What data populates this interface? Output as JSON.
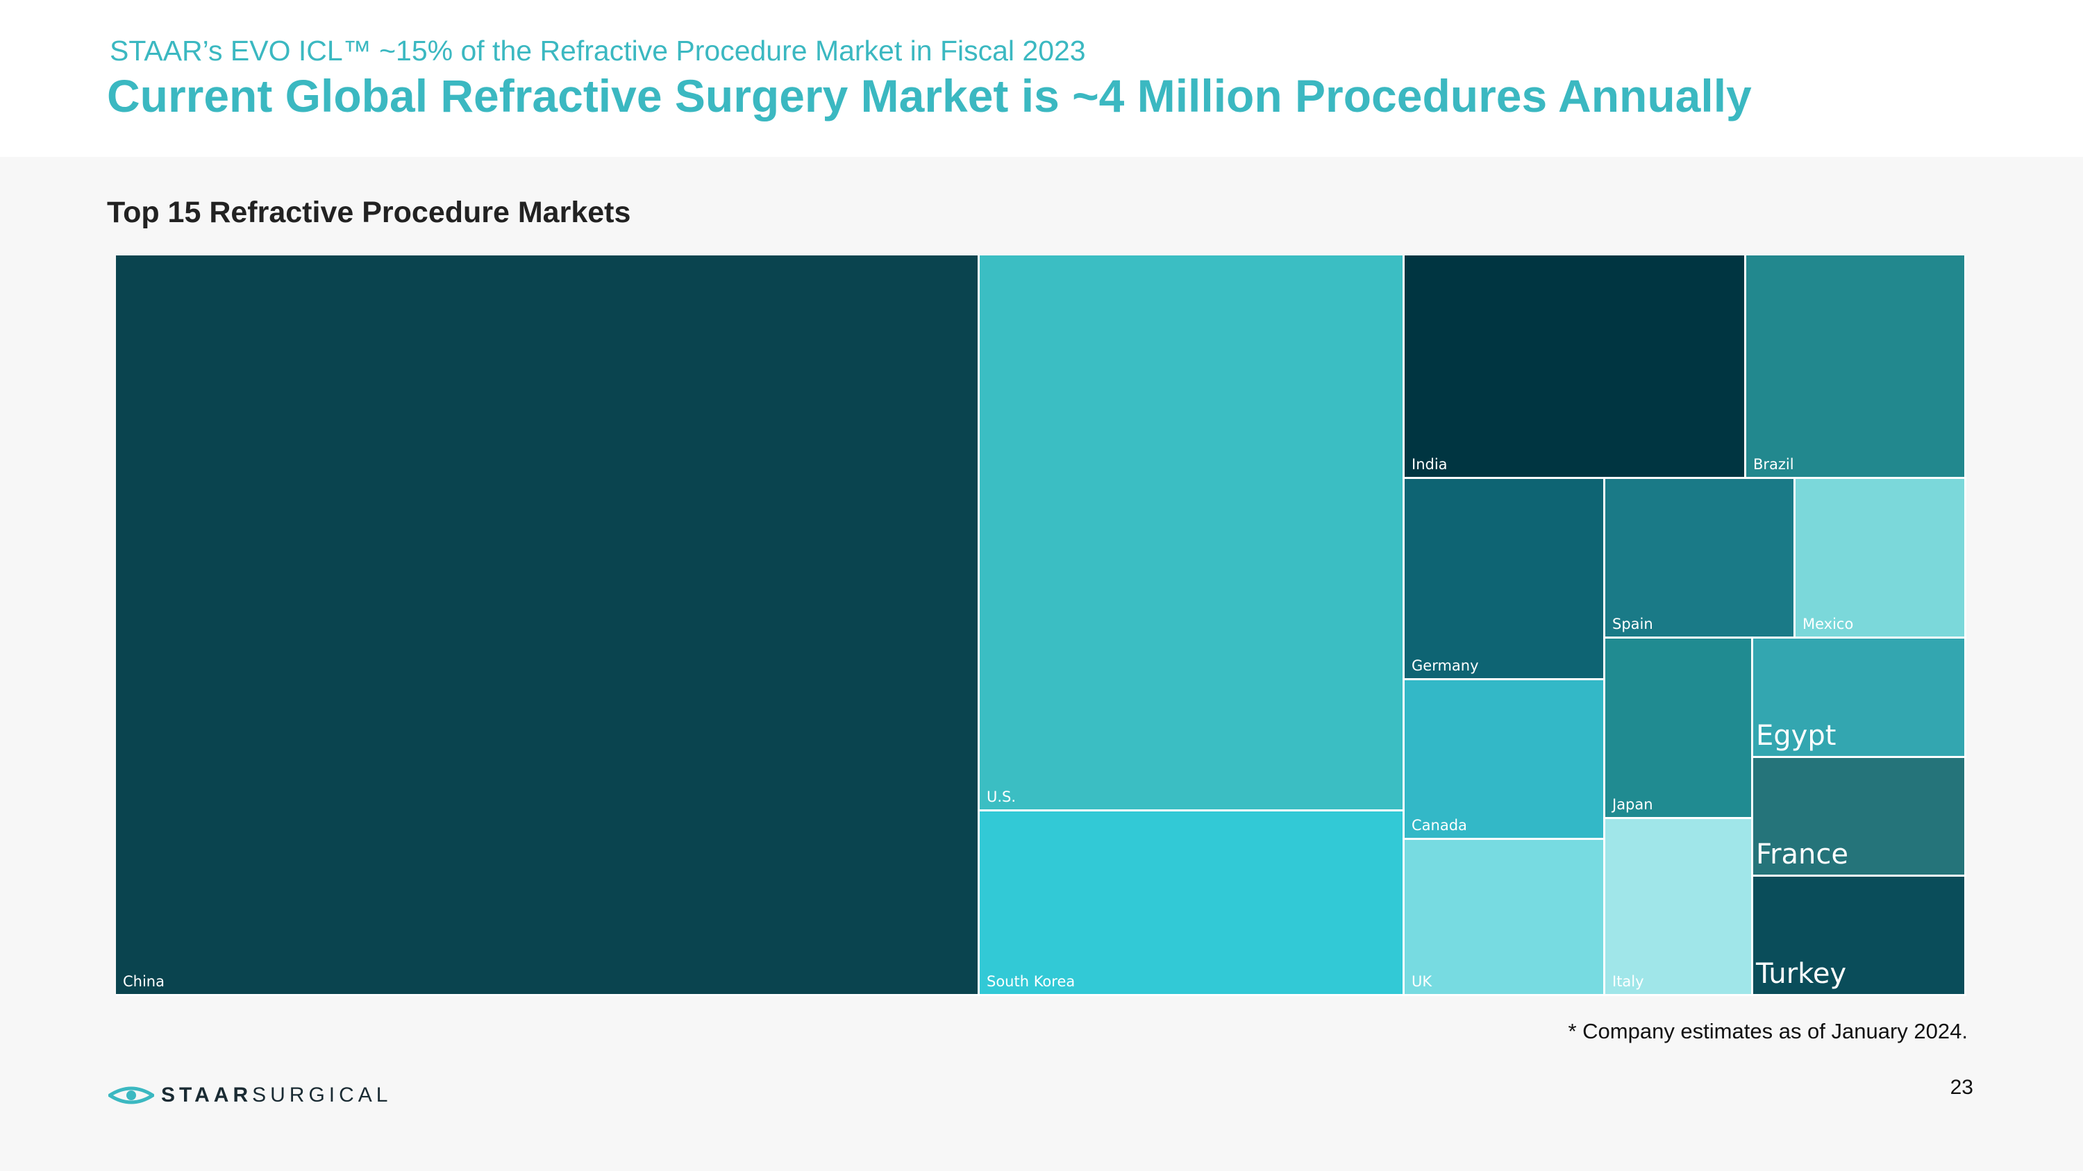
{
  "header": {
    "subtitle": "STAAR’s EVO ICL™ ~15% of the Refractive Procedure Market in Fiscal 2023",
    "title": "Current Global Refractive Surgery Market is ~4 Million Procedures Annually"
  },
  "chart_data": {
    "type": "treemap",
    "title": "Top 15 Refractive Procedure Markets",
    "legend": "none",
    "items": [
      {
        "name": "China",
        "color": "#0a444f",
        "label_size": "small"
      },
      {
        "name": "U.S.",
        "color": "#3bbec3",
        "label_size": "small"
      },
      {
        "name": "South Korea",
        "color": "#32c9d6",
        "label_size": "small"
      },
      {
        "name": "India",
        "color": "#003541",
        "label_size": "small"
      },
      {
        "name": "Brazil",
        "color": "#22888e",
        "label_size": "small"
      },
      {
        "name": "Germany",
        "color": "#0e6473",
        "label_size": "small"
      },
      {
        "name": "Spain",
        "color": "#1a7a87",
        "label_size": "small"
      },
      {
        "name": "Mexico",
        "color": "#7bd8da",
        "label_size": "small"
      },
      {
        "name": "Canada",
        "color": "#33b8c7",
        "label_size": "small"
      },
      {
        "name": "UK",
        "color": "#77dbe1",
        "label_size": "small"
      },
      {
        "name": "Japan",
        "color": "#208b91",
        "label_size": "small"
      },
      {
        "name": "Italy",
        "color": "#a0e6e9",
        "label_size": "small"
      },
      {
        "name": "Egypt",
        "color": "#33a6b0",
        "label_size": "large"
      },
      {
        "name": "France",
        "color": "#25747a",
        "label_size": "large"
      },
      {
        "name": "Turkey",
        "color": "#0a4d5a",
        "label_size": "large"
      }
    ]
  },
  "footer": {
    "footnote": "* Company estimates as of January 2024.",
    "page_number": "23",
    "logo": {
      "bold": "STAAR",
      "light": "SURGICAL"
    }
  }
}
